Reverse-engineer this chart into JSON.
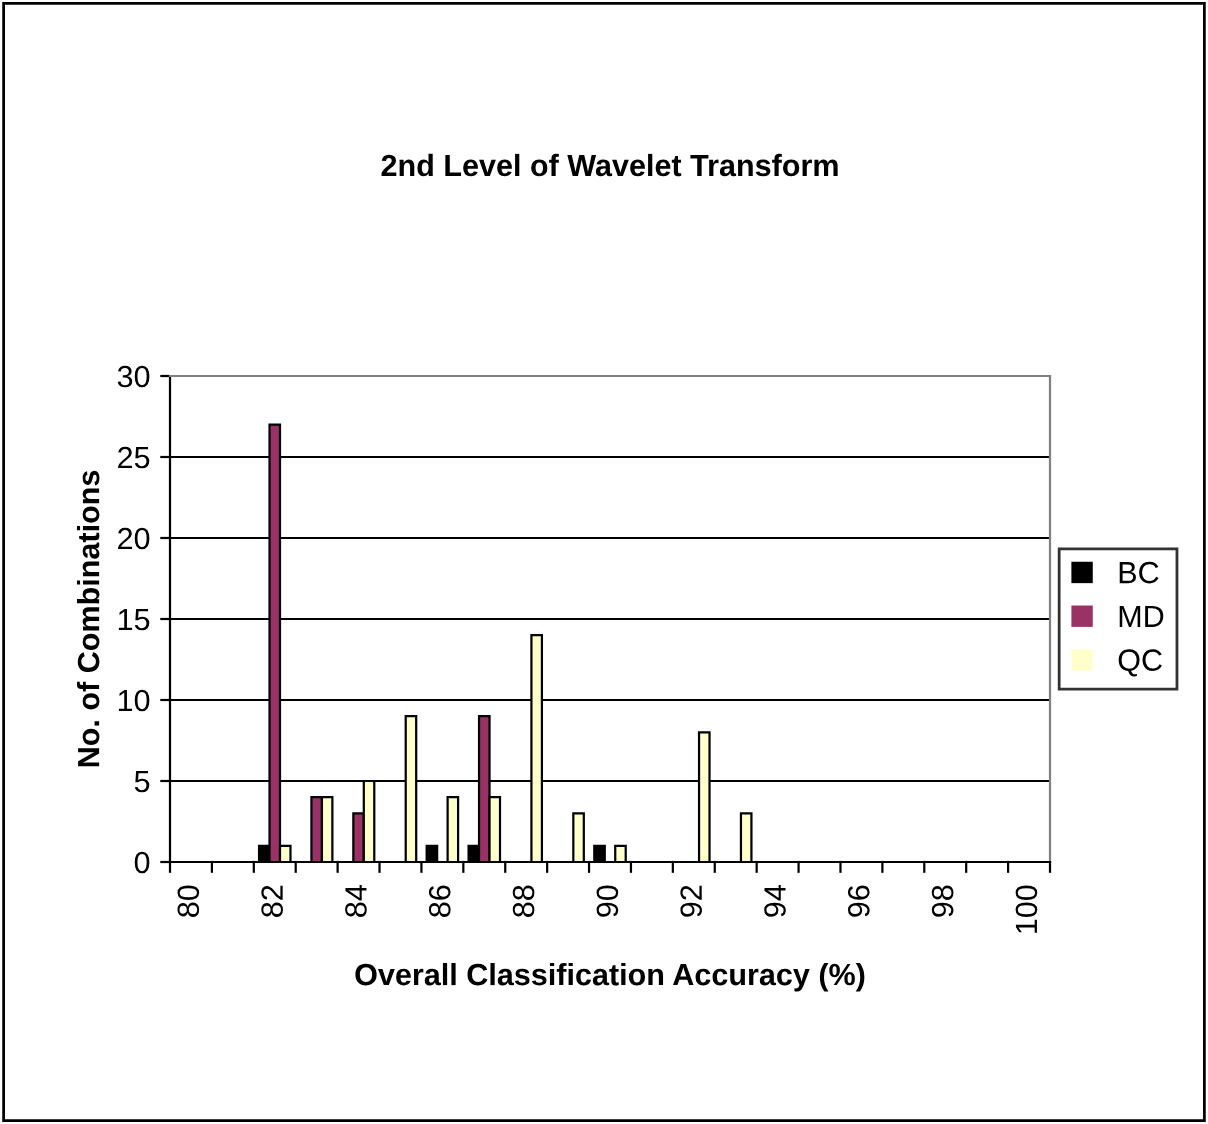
{
  "chart_data": {
    "type": "bar",
    "title": "2nd Level of Wavelet Transform",
    "xlabel": "Overall Classification Accuracy (%)",
    "ylabel": "No. of Combinations",
    "categories": [
      "80",
      null,
      "82",
      null,
      "84",
      null,
      "86",
      null,
      "88",
      null,
      "90",
      null,
      "92",
      null,
      "94",
      null,
      "96",
      null,
      "98",
      null,
      "100"
    ],
    "series": [
      {
        "name": "BC",
        "color": "#000000",
        "values": [
          0,
          0,
          1,
          0,
          0,
          0,
          1,
          1,
          0,
          0,
          1,
          0,
          0,
          0,
          0,
          0,
          0,
          0,
          0,
          0,
          0
        ]
      },
      {
        "name": "MD",
        "color": "#993366",
        "values": [
          0,
          0,
          27,
          4,
          3,
          0,
          0,
          9,
          0,
          0,
          0,
          0,
          0,
          0,
          0,
          0,
          0,
          0,
          0,
          0,
          0
        ]
      },
      {
        "name": "QC",
        "color": "#ffffcc",
        "values": [
          0,
          0,
          1,
          4,
          5,
          9,
          4,
          4,
          14,
          3,
          1,
          0,
          8,
          3,
          0,
          0,
          0,
          0,
          0,
          0,
          0
        ]
      }
    ],
    "ylim": [
      0,
      30
    ],
    "yticks": [
      0,
      5,
      10,
      15,
      20,
      25,
      30
    ],
    "grid": "y",
    "legend": "right"
  }
}
